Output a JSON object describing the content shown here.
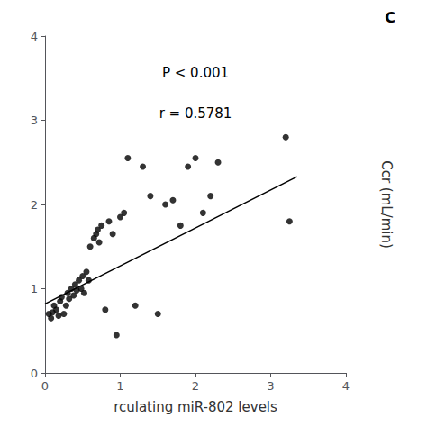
{
  "chart_data": {
    "type": "scatter",
    "title": "C",
    "xlabel": "rculating miR-802 levels",
    "ylabel": "Ccr (mL/min)",
    "annotations": [
      "P < 0.001",
      "r = 0.5781"
    ],
    "series": [
      {
        "type": "scatter",
        "color": "#000000",
        "x": [
          0.05,
          0.08,
          0.1,
          0.12,
          0.15,
          0.18,
          0.2,
          0.22,
          0.25,
          0.28,
          0.3,
          0.32,
          0.35,
          0.38,
          0.4,
          0.42,
          0.45,
          0.48,
          0.5,
          0.52,
          0.55,
          0.58,
          0.6,
          0.65,
          0.68,
          0.7,
          0.72,
          0.75,
          0.8,
          0.85,
          0.9,
          0.95,
          1.0,
          1.05,
          1.1,
          1.2,
          1.3,
          1.4,
          1.5,
          1.6,
          1.7,
          1.8,
          1.9,
          2.0,
          2.1,
          2.2,
          2.3,
          3.2,
          3.25
        ],
        "values": [
          0.7,
          0.65,
          0.72,
          0.8,
          0.75,
          0.68,
          0.85,
          0.9,
          0.7,
          0.8,
          0.95,
          0.88,
          1.0,
          0.92,
          1.05,
          0.98,
          1.1,
          1.0,
          1.15,
          0.95,
          1.2,
          1.1,
          1.5,
          1.6,
          1.65,
          1.7,
          1.55,
          1.75,
          0.75,
          1.8,
          1.65,
          0.45,
          1.85,
          1.9,
          2.55,
          0.8,
          2.45,
          2.1,
          0.7,
          2.0,
          2.05,
          1.75,
          2.45,
          2.55,
          1.9,
          2.1,
          2.5,
          2.8,
          1.8
        ]
      },
      {
        "type": "line",
        "color": "#000000",
        "x": [
          0.0,
          3.35
        ],
        "values": [
          0.82,
          2.33
        ]
      }
    ],
    "xlim": [
      0,
      4
    ],
    "ylim": [
      0,
      4
    ],
    "xticks": [
      0,
      1,
      2,
      3,
      4
    ],
    "yticks": [
      0,
      1,
      2,
      3,
      4
    ],
    "grid": false
  }
}
